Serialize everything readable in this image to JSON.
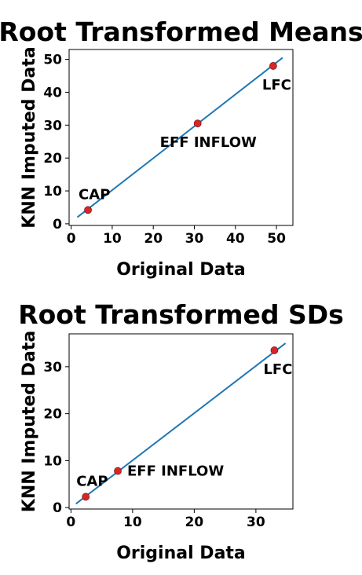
{
  "chart_data": [
    {
      "type": "scatter",
      "title": "Root Transformed Means",
      "xlabel": "Original Data",
      "ylabel": "KNN Imputed Data",
      "xlim": [
        -0.5,
        54
      ],
      "ylim": [
        -0.5,
        53
      ],
      "xticks": [
        0,
        10,
        20,
        30,
        40,
        50
      ],
      "yticks": [
        0,
        10,
        20,
        30,
        40,
        50
      ],
      "grid": false,
      "point_color": "#d62728",
      "line_color": "#1f77b4",
      "points": [
        {
          "label": "CAP",
          "x": 4.1,
          "y": 4.2
        },
        {
          "label": "EFF INFLOW",
          "x": 30.8,
          "y": 30.5
        },
        {
          "label": "LFC",
          "x": 49.2,
          "y": 48.0
        }
      ],
      "fit_line": {
        "x": [
          1.5,
          51.5
        ],
        "y": [
          2.0,
          50.5
        ]
      }
    },
    {
      "type": "scatter",
      "title": "Root Transformed SDs",
      "xlabel": "Original Data",
      "ylabel": "KNN Imputed Data",
      "xlim": [
        -0.3,
        36
      ],
      "ylim": [
        -0.3,
        37
      ],
      "xticks": [
        0,
        10,
        20,
        30
      ],
      "yticks": [
        0,
        10,
        20,
        30
      ],
      "grid": false,
      "point_color": "#d62728",
      "line_color": "#1f77b4",
      "points": [
        {
          "label": "CAP",
          "x": 2.4,
          "y": 2.3
        },
        {
          "label": "EFF INFLOW",
          "x": 7.6,
          "y": 7.8
        },
        {
          "label": "LFC",
          "x": 33.0,
          "y": 33.5
        }
      ],
      "fit_line": {
        "x": [
          0.8,
          34.8
        ],
        "y": [
          0.8,
          35.0
        ]
      }
    }
  ]
}
